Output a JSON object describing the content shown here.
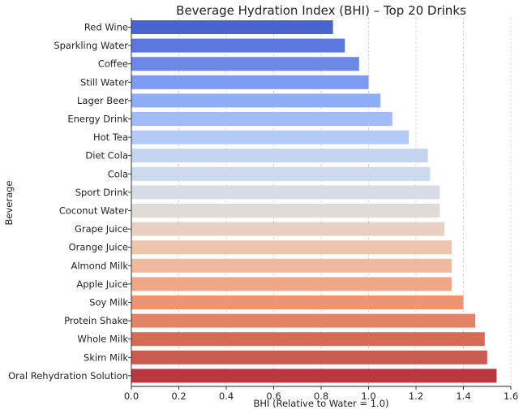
{
  "chart_data": {
    "type": "bar",
    "orientation": "horizontal",
    "title": "Beverage Hydration Index (BHI) – Top 20 Drinks",
    "xlabel": "BHI (Relative to Water = 1.0)",
    "ylabel": "Beverage",
    "xlim": [
      0.0,
      1.6
    ],
    "xticks": [
      "0.0",
      "0.2",
      "0.4",
      "0.6",
      "0.8",
      "1.0",
      "1.2",
      "1.4",
      "1.6"
    ],
    "grid": "vertical dashed",
    "colormap": "coolwarm",
    "categories": [
      "Red Wine",
      "Sparkling Water",
      "Coffee",
      "Still Water",
      "Lager Beer",
      "Energy Drink",
      "Hot Tea",
      "Diet Cola",
      "Cola",
      "Sport Drink",
      "Coconut Water",
      "Grape Juice",
      "Orange Juice",
      "Almond Milk",
      "Apple Juice",
      "Soy Milk",
      "Protein Shake",
      "Whole Milk",
      "Skim Milk",
      "Oral Rehydration Solution"
    ],
    "values": [
      0.85,
      0.9,
      0.96,
      1.0,
      1.05,
      1.1,
      1.17,
      1.25,
      1.26,
      1.3,
      1.3,
      1.32,
      1.35,
      1.35,
      1.35,
      1.4,
      1.45,
      1.49,
      1.5,
      1.54
    ],
    "colors": [
      "#4a63cd",
      "#5b76dc",
      "#6c89e8",
      "#7d9bf0",
      "#8facf6",
      "#a1bcf9",
      "#b4caf9",
      "#c3d4f1",
      "#cdd9ec",
      "#d7dce5",
      "#e0dbd6",
      "#e8d1c3",
      "#efc5b0",
      "#f0b89c",
      "#efa788",
      "#ea9575",
      "#e38466",
      "#d66b55",
      "#c85a4f",
      "#b9383d"
    ]
  }
}
